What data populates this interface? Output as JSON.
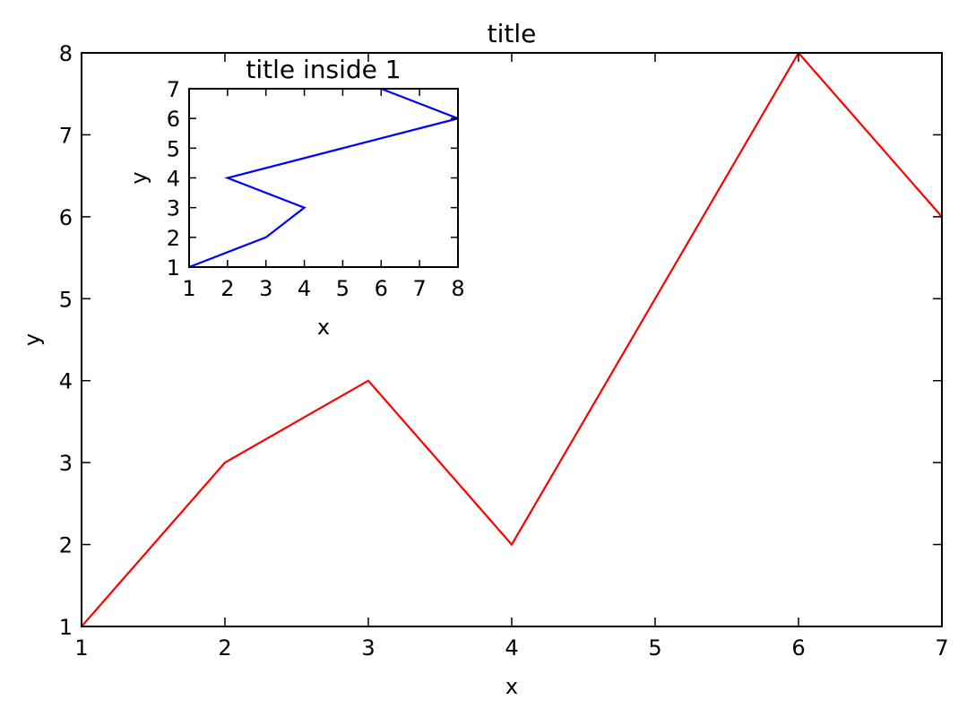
{
  "chart_data": [
    {
      "type": "line",
      "title": "title",
      "xlabel": "x",
      "ylabel": "y",
      "x": [
        1,
        2,
        3,
        4,
        5,
        6,
        7
      ],
      "series": [
        {
          "values": [
            1,
            3,
            4,
            2,
            5,
            8,
            6
          ],
          "color": "#ff0000"
        }
      ],
      "xlim": [
        1,
        7
      ],
      "ylim": [
        1,
        8
      ],
      "xticks": [
        1,
        2,
        3,
        4,
        5,
        6,
        7
      ],
      "yticks": [
        1,
        2,
        3,
        4,
        5,
        6,
        7,
        8
      ],
      "grid": false
    },
    {
      "type": "line",
      "title": "title inside 1",
      "xlabel": "x",
      "ylabel": "y",
      "x": [
        1,
        3,
        4,
        2,
        5,
        8,
        6
      ],
      "series": [
        {
          "values": [
            1,
            2,
            3,
            4,
            5,
            6,
            7
          ],
          "color": "#0000ff"
        }
      ],
      "xlim": [
        1,
        8
      ],
      "ylim": [
        1,
        7
      ],
      "xticks": [
        1,
        2,
        3,
        4,
        5,
        6,
        7,
        8
      ],
      "yticks": [
        1,
        2,
        3,
        4,
        5,
        6,
        7
      ],
      "grid": false,
      "placement": "inset-top-left"
    }
  ]
}
